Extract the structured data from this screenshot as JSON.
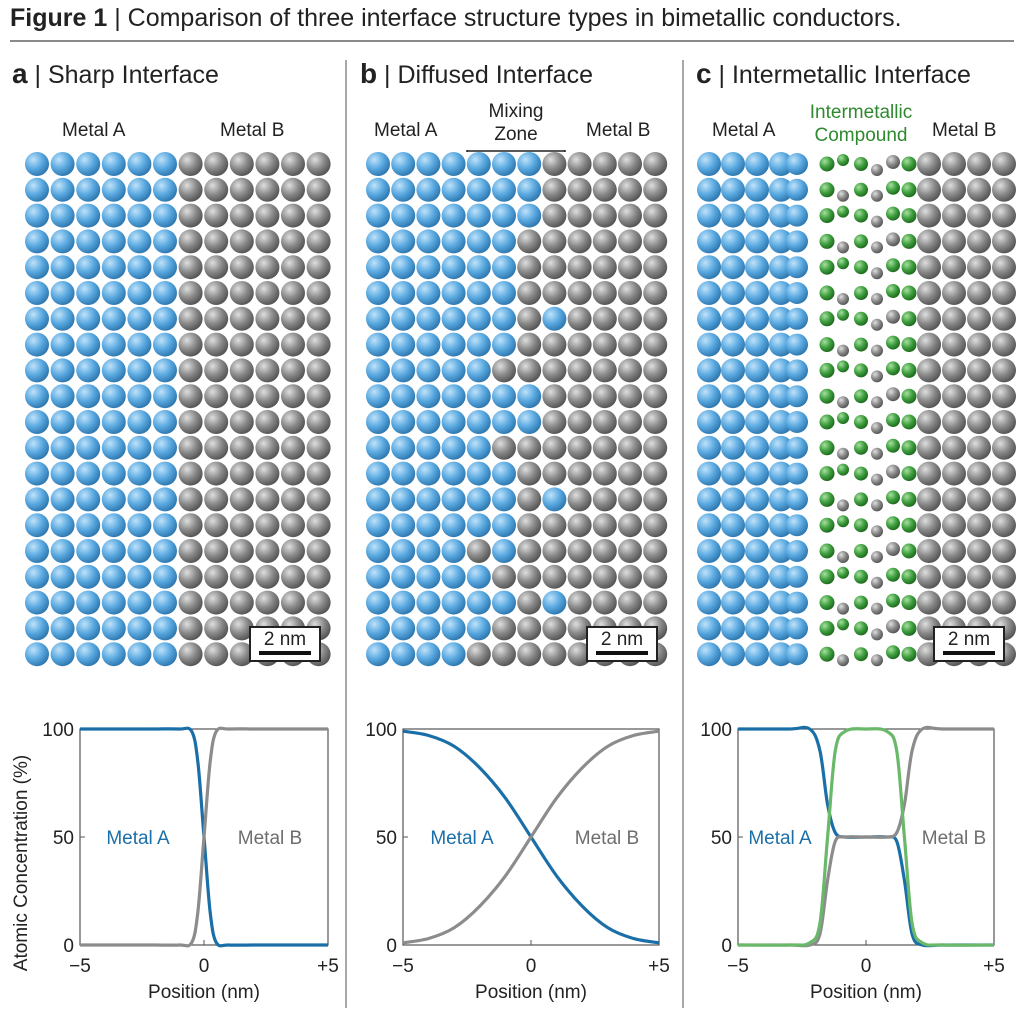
{
  "figure": {
    "label": "Figure 1",
    "separator": " | ",
    "caption": "Comparison of three interface structure types in bimetallic conductors."
  },
  "panels": [
    {
      "letter": "a",
      "title": "Sharp Interface",
      "metal_a_label": "Metal A",
      "metal_b_label": "Metal B",
      "scale_bar": "2 nm"
    },
    {
      "letter": "b",
      "title": "Diffused Interface",
      "metal_a_label": "Metal A",
      "metal_b_label": "Metal B",
      "zone_label_line1": "Mixing",
      "zone_label_line2": "Zone",
      "scale_bar": "2 nm"
    },
    {
      "letter": "c",
      "title": "Intermetallic Interface",
      "metal_a_label": "Metal A",
      "metal_b_label": "Metal B",
      "zone_label_line1": "Intermetallic",
      "zone_label_line2": "Compound",
      "scale_bar": "2 nm"
    }
  ],
  "colors": {
    "metal_a_atom": "#5aa9e0",
    "metal_b_atom": "#8a8a8a",
    "compound_atom": "#3f9f3f",
    "metal_a_curve": "#1a6fa8",
    "metal_b_curve": "#8c8c8c",
    "compound_curve": "#6ab86a"
  },
  "chart_data": [
    {
      "type": "line",
      "title": "",
      "xlabel": "Position (nm)",
      "ylabel": "Atomic Concentration (%)",
      "xlim": [
        -5,
        5
      ],
      "ylim": [
        0,
        100
      ],
      "xticks": [
        "−5",
        "0",
        "+5"
      ],
      "yticks": [
        "0",
        "50",
        "100"
      ],
      "x": [
        -5,
        -4,
        -3,
        -2,
        -1,
        -0.5,
        -0.25,
        0,
        0.25,
        0.5,
        1,
        2,
        3,
        4,
        5
      ],
      "series": [
        {
          "name": "Metal A",
          "values": [
            100,
            100,
            100,
            100,
            100,
            99,
            85,
            50,
            15,
            1,
            0,
            0,
            0,
            0,
            0
          ]
        },
        {
          "name": "Metal B",
          "values": [
            0,
            0,
            0,
            0,
            0,
            1,
            15,
            50,
            85,
            99,
            100,
            100,
            100,
            100,
            100
          ]
        }
      ],
      "annotations": [
        "Metal A",
        "Metal B"
      ]
    },
    {
      "type": "line",
      "title": "",
      "xlabel": "Position (nm)",
      "ylabel": "",
      "xlim": [
        -5,
        5
      ],
      "ylim": [
        0,
        100
      ],
      "xticks": [
        "−5",
        "0",
        "+5"
      ],
      "yticks": [
        "0",
        "50",
        "100"
      ],
      "x": [
        -5,
        -4,
        -3,
        -2,
        -1,
        0,
        1,
        2,
        3,
        4,
        5
      ],
      "series": [
        {
          "name": "Metal A",
          "values": [
            99,
            97,
            92,
            82,
            68,
            50,
            32,
            18,
            8,
            3,
            1
          ]
        },
        {
          "name": "Metal B",
          "values": [
            1,
            3,
            8,
            18,
            32,
            50,
            68,
            82,
            92,
            97,
            99
          ]
        }
      ],
      "annotations": [
        "Metal A",
        "Metal B"
      ]
    },
    {
      "type": "line",
      "title": "",
      "xlabel": "Position (nm)",
      "ylabel": "",
      "xlim": [
        -5,
        5
      ],
      "ylim": [
        0,
        100
      ],
      "xticks": [
        "−5",
        "0",
        "+5"
      ],
      "yticks": [
        "0",
        "50",
        "100"
      ],
      "x": [
        -5,
        -3,
        -2.2,
        -1.8,
        -1.5,
        -1.2,
        -0.8,
        0,
        0.8,
        1.2,
        1.5,
        1.8,
        2.2,
        3,
        5
      ],
      "series": [
        {
          "name": "Metal A",
          "values": [
            100,
            100,
            100,
            90,
            65,
            52,
            50,
            50,
            50,
            48,
            30,
            5,
            0,
            0,
            0
          ]
        },
        {
          "name": "Metal B",
          "values": [
            0,
            0,
            0,
            5,
            30,
            48,
            50,
            50,
            50,
            52,
            65,
            90,
            100,
            100,
            100
          ]
        },
        {
          "name": "Intermetallic Compound",
          "values": [
            0,
            0,
            1,
            10,
            50,
            90,
            99,
            100,
            99,
            90,
            50,
            10,
            1,
            0,
            0
          ]
        }
      ],
      "annotations": [
        "Metal A",
        "Metal B"
      ]
    }
  ]
}
